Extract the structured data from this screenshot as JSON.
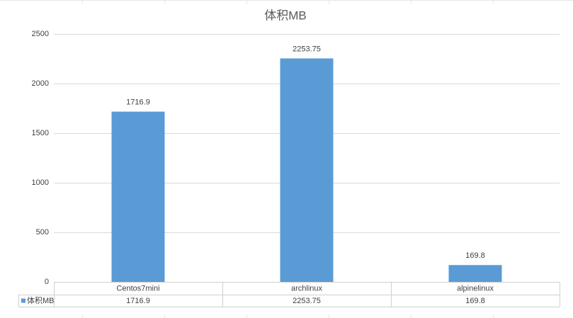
{
  "chart_data": {
    "type": "bar",
    "title": "体积MB",
    "categories": [
      "Centos7mini",
      "archlinux",
      "alpinelinux"
    ],
    "series": [
      {
        "name": "体积MB",
        "color": "#5b9bd5",
        "values": [
          1716.9,
          2253.75,
          169.8
        ]
      }
    ],
    "ylim": [
      0,
      2500
    ],
    "yticks": [
      0,
      500,
      1000,
      1500,
      2000,
      2500
    ],
    "grid": true
  }
}
